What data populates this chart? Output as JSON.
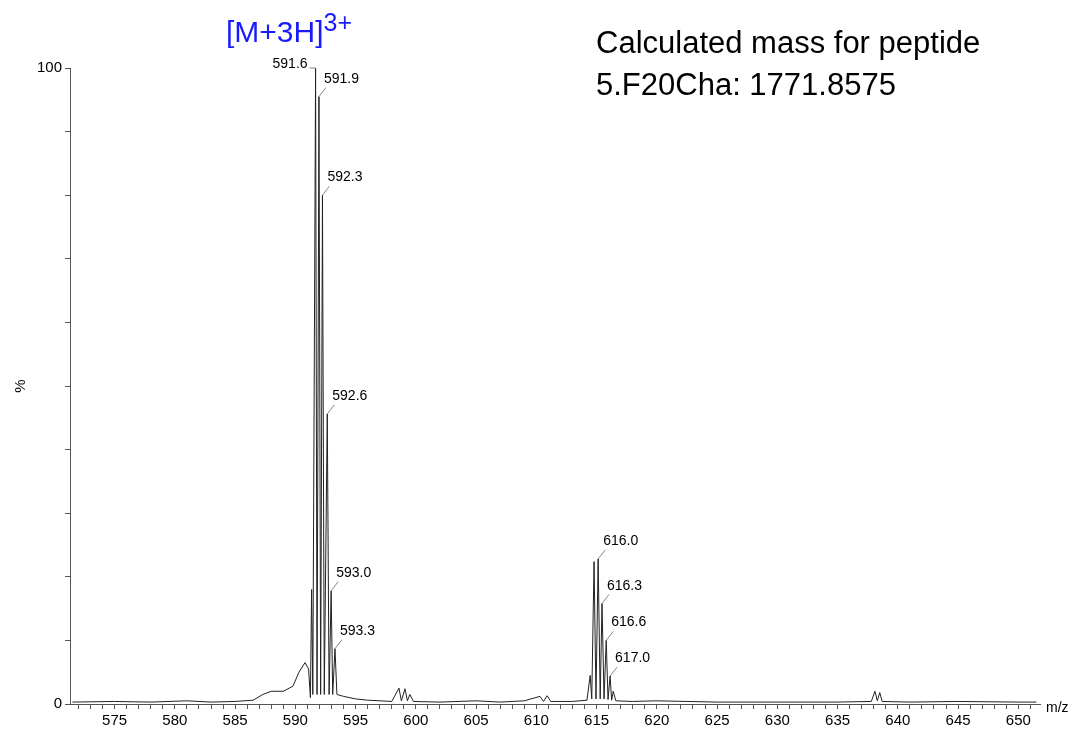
{
  "chart_data": {
    "type": "line",
    "title": "[M+3H]$^{3+}$",
    "xlabel": "m/z",
    "ylabel": "%",
    "xlim": [
      571.3,
      651.8
    ],
    "xticks": [
      {
        "value": 572,
        "label": null
      },
      {
        "value": 573,
        "label": null
      },
      {
        "value": 574,
        "label": null
      },
      575,
      {
        "value": 576,
        "label": null
      },
      {
        "value": 577,
        "label": null
      },
      {
        "value": 578,
        "label": null
      },
      {
        "value": 579,
        "label": null
      },
      580,
      {
        "value": 581,
        "label": null
      },
      {
        "value": 582,
        "label": null
      },
      {
        "value": 583,
        "label": null
      },
      {
        "value": 584,
        "label": null
      },
      585,
      {
        "value": 586,
        "label": null
      },
      {
        "value": 587,
        "label": null
      },
      {
        "value": 588,
        "label": null
      },
      {
        "value": 589,
        "label": null
      },
      590,
      {
        "value": 591,
        "label": null
      },
      {
        "value": 592,
        "label": null
      },
      {
        "value": 593,
        "label": null
      },
      {
        "value": 594,
        "label": null
      },
      595,
      {
        "value": 596,
        "label": null
      },
      {
        "value": 597,
        "label": null
      },
      {
        "value": 598,
        "label": null
      },
      {
        "value": 599,
        "label": null
      },
      600,
      {
        "value": 601,
        "label": null
      },
      {
        "value": 602,
        "label": null
      },
      {
        "value": 603,
        "label": null
      },
      {
        "value": 604,
        "label": null
      },
      605,
      {
        "value": 606,
        "label": null
      },
      {
        "value": 607,
        "label": null
      },
      {
        "value": 608,
        "label": null
      },
      {
        "value": 609,
        "label": null
      },
      610,
      {
        "value": 611,
        "label": null
      },
      {
        "value": 612,
        "label": null
      },
      {
        "value": 613,
        "label": null
      },
      {
        "value": 614,
        "label": null
      },
      615,
      {
        "value": 616,
        "label": null
      },
      {
        "value": 617,
        "label": null
      },
      {
        "value": 618,
        "label": null
      },
      {
        "value": 619,
        "label": null
      },
      620,
      {
        "value": 621,
        "label": null
      },
      {
        "value": 622,
        "label": null
      },
      {
        "value": 623,
        "label": null
      },
      {
        "value": 624,
        "label": null
      },
      625,
      {
        "value": 626,
        "label": null
      },
      {
        "value": 627,
        "label": null
      },
      {
        "value": 628,
        "label": null
      },
      {
        "value": 629,
        "label": null
      },
      630,
      {
        "value": 631,
        "label": null
      },
      {
        "value": 632,
        "label": null
      },
      {
        "value": 633,
        "label": null
      },
      {
        "value": 634,
        "label": null
      },
      635,
      {
        "value": 636,
        "label": null
      },
      {
        "value": 637,
        "label": null
      },
      {
        "value": 638,
        "label": null
      },
      {
        "value": 639,
        "label": null
      },
      640,
      {
        "value": 641,
        "label": null
      },
      {
        "value": 642,
        "label": null
      },
      {
        "value": 643,
        "label": null
      },
      {
        "value": 644,
        "label": null
      },
      645,
      {
        "value": 646,
        "label": null
      },
      {
        "value": 647,
        "label": null
      },
      {
        "value": 648,
        "label": null
      },
      {
        "value": 649,
        "label": null
      },
      650,
      {
        "value": 651,
        "label": null
      }
    ],
    "ylim": [
      0,
      100
    ],
    "yticks": [
      0,
      {
        "value": 10,
        "label": null
      },
      {
        "value": 20,
        "label": null
      },
      {
        "value": 30,
        "label": null
      },
      {
        "value": 40,
        "label": null
      },
      {
        "value": 50,
        "label": null
      },
      {
        "value": 60,
        "label": null
      },
      {
        "value": 70,
        "label": null
      },
      {
        "value": 80,
        "label": null
      },
      {
        "value": 90,
        "label": null
      },
      100
    ],
    "grid": false,
    "legend": false,
    "marker": "none",
    "line_style": "solid",
    "x": [
      571.5,
      575,
      578,
      581,
      583,
      585,
      586.5,
      587.3,
      588,
      589,
      589.8,
      590.3,
      590.8,
      591.1,
      591.25,
      591.35,
      591.45,
      591.68,
      591.8,
      591.96,
      592.1,
      592.25,
      592.4,
      592.65,
      592.8,
      592.97,
      593.1,
      593.29,
      593.45,
      594,
      595,
      596,
      598,
      598.6,
      598.8,
      599.1,
      599.3,
      599.5,
      599.8,
      602,
      605,
      607,
      609,
      610.3,
      610.6,
      610.9,
      611.2,
      613,
      614.2,
      614.47,
      614.6,
      614.79,
      614.95,
      615.13,
      615.3,
      615.45,
      615.62,
      615.8,
      615.95,
      616.12,
      616.25,
      616.38,
      616.6,
      618,
      620,
      625,
      630,
      635,
      637.8,
      638.1,
      638.3,
      638.5,
      638.7,
      641,
      645,
      650,
      651.5
    ],
    "series": [
      {
        "color": "#222222",
        "values": [
          0.3,
          0.4,
          0.3,
          0.5,
          0.3,
          0.4,
          0.6,
          1.5,
          2,
          2,
          2.8,
          5,
          6.5,
          5.5,
          1,
          18,
          1.5,
          100,
          1.5,
          95.5,
          1.5,
          80,
          1.5,
          45.6,
          1.5,
          17.8,
          1.5,
          8.7,
          1.5,
          1.2,
          0.8,
          0.6,
          0.4,
          2.5,
          0.5,
          2.4,
          0.5,
          1.5,
          0.4,
          0.3,
          0.5,
          0.3,
          0.5,
          1.2,
          0.4,
          1.3,
          0.4,
          0.4,
          0.6,
          4.5,
          0.8,
          22.4,
          0.8,
          22.8,
          0.8,
          15.8,
          0.8,
          10,
          0.7,
          4.4,
          0.6,
          2,
          0.5,
          0.4,
          0.5,
          0.3,
          0.3,
          0.3,
          0.4,
          2,
          0.5,
          1.8,
          0.4,
          0.3,
          0.4,
          0.3,
          0.3
        ]
      }
    ],
    "annotations": [
      "Calculated mass for peptide 5.F20Cha: 1771.8575",
      {
        "text": "591.6",
        "x": 591.68,
        "y": 100
      },
      {
        "text": "591.9",
        "x": 591.96,
        "y": 95.5
      },
      {
        "text": "592.3",
        "x": 592.25,
        "y": 80
      },
      {
        "text": "592.6",
        "x": 592.65,
        "y": 45.6
      },
      {
        "text": "593.0",
        "x": 592.97,
        "y": 17.8
      },
      {
        "text": "593.3",
        "x": 593.29,
        "y": 8.7
      },
      {
        "text": "616.0",
        "x": 615.13,
        "y": 22.8
      },
      {
        "text": "616.3",
        "x": 615.45,
        "y": 15.8
      },
      {
        "text": "616.6",
        "x": 615.8,
        "y": 10
      },
      {
        "text": "617.0",
        "x": 616.12,
        "y": 4.4
      }
    ]
  }
}
